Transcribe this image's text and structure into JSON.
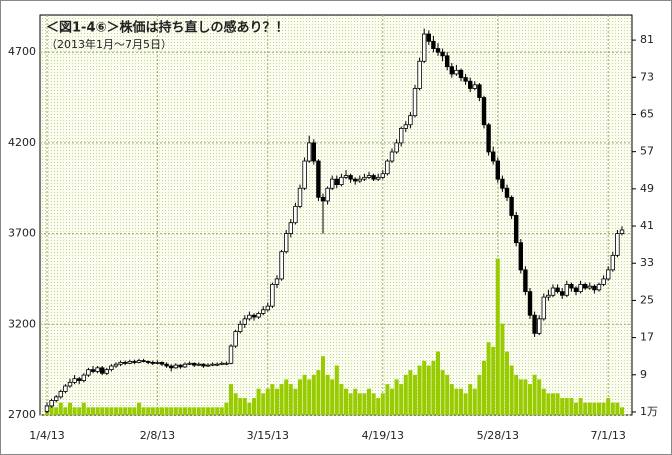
{
  "chart_data": {
    "type": "candlestick",
    "title": "＜図1-4⑥＞株価は持ち直しの感あり？！",
    "subtitle": "（2013年1月～7月5日）",
    "categories": [
      "1/4/13",
      null,
      null,
      null,
      null,
      null,
      null,
      null,
      null,
      null,
      null,
      null,
      null,
      null,
      null,
      null,
      null,
      null,
      null,
      null,
      null,
      null,
      null,
      null,
      "2/8/13",
      null,
      null,
      null,
      null,
      null,
      null,
      null,
      null,
      null,
      null,
      null,
      null,
      null,
      null,
      null,
      null,
      null,
      null,
      null,
      null,
      null,
      null,
      null,
      "3/15/13",
      null,
      null,
      null,
      null,
      null,
      null,
      null,
      null,
      null,
      null,
      null,
      null,
      null,
      null,
      null,
      null,
      null,
      null,
      null,
      null,
      null,
      null,
      null,
      null,
      "4/19/13",
      null,
      null,
      null,
      null,
      null,
      null,
      null,
      null,
      null,
      null,
      null,
      null,
      null,
      null,
      null,
      null,
      null,
      null,
      null,
      null,
      null,
      null,
      null,
      null,
      "5/28/13",
      null,
      null,
      null,
      null,
      null,
      null,
      null,
      null,
      null,
      null,
      null,
      null,
      null,
      null,
      null,
      null,
      null,
      null,
      null,
      null,
      null,
      null,
      null,
      "7/1/13",
      null,
      null,
      null
    ],
    "ohlc": [
      [
        2720,
        2770,
        2710,
        2750
      ],
      [
        2750,
        2790,
        2740,
        2780
      ],
      [
        2780,
        2810,
        2770,
        2800
      ],
      [
        2800,
        2840,
        2790,
        2830
      ],
      [
        2830,
        2870,
        2820,
        2860
      ],
      [
        2860,
        2900,
        2850,
        2880
      ],
      [
        2880,
        2920,
        2870,
        2900
      ],
      [
        2900,
        2910,
        2870,
        2890
      ],
      [
        2890,
        2930,
        2880,
        2920
      ],
      [
        2920,
        2960,
        2910,
        2950
      ],
      [
        2950,
        2970,
        2930,
        2940
      ],
      [
        2940,
        2970,
        2930,
        2960
      ],
      [
        2960,
        2970,
        2920,
        2930
      ],
      [
        2930,
        2960,
        2920,
        2950
      ],
      [
        2950,
        2980,
        2940,
        2970
      ],
      [
        2970,
        2990,
        2960,
        2980
      ],
      [
        2980,
        3000,
        2970,
        2990
      ],
      [
        2990,
        3000,
        2975,
        2985
      ],
      [
        2985,
        3005,
        2980,
        2995
      ],
      [
        2995,
        3005,
        2980,
        2990
      ],
      [
        2990,
        3010,
        2985,
        3000
      ],
      [
        3000,
        3010,
        2990,
        2995
      ],
      [
        2995,
        3000,
        2980,
        2990
      ],
      [
        2990,
        3000,
        2975,
        2985
      ],
      [
        2985,
        3000,
        2980,
        2990
      ],
      [
        2990,
        2995,
        2970,
        2980
      ],
      [
        2980,
        2990,
        2960,
        2970
      ],
      [
        2970,
        2980,
        2940,
        2960
      ],
      [
        2960,
        2985,
        2955,
        2975
      ],
      [
        2975,
        2980,
        2955,
        2965
      ],
      [
        2965,
        2990,
        2960,
        2980
      ],
      [
        2980,
        2995,
        2975,
        2985
      ],
      [
        2985,
        2990,
        2965,
        2975
      ],
      [
        2975,
        2990,
        2970,
        2980
      ],
      [
        2980,
        2985,
        2960,
        2970
      ],
      [
        2970,
        2985,
        2965,
        2975
      ],
      [
        2975,
        2990,
        2970,
        2980
      ],
      [
        2980,
        2990,
        2970,
        2980
      ],
      [
        2980,
        2995,
        2975,
        2985
      ],
      [
        2985,
        2995,
        2975,
        2985
      ],
      [
        2985,
        3090,
        2980,
        3080
      ],
      [
        3080,
        3170,
        3070,
        3160
      ],
      [
        3160,
        3220,
        3150,
        3200
      ],
      [
        3200,
        3250,
        3180,
        3230
      ],
      [
        3230,
        3270,
        3220,
        3250
      ],
      [
        3250,
        3260,
        3220,
        3240
      ],
      [
        3240,
        3270,
        3230,
        3260
      ],
      [
        3260,
        3300,
        3250,
        3280
      ],
      [
        3280,
        3320,
        3270,
        3300
      ],
      [
        3300,
        3430,
        3290,
        3420
      ],
      [
        3420,
        3470,
        3400,
        3450
      ],
      [
        3450,
        3610,
        3440,
        3600
      ],
      [
        3600,
        3720,
        3590,
        3700
      ],
      [
        3700,
        3780,
        3680,
        3760
      ],
      [
        3760,
        3870,
        3750,
        3850
      ],
      [
        3850,
        3970,
        3840,
        3950
      ],
      [
        3950,
        4120,
        3940,
        4100
      ],
      [
        4100,
        4240,
        4090,
        4200
      ],
      [
        4200,
        4220,
        4080,
        4100
      ],
      [
        4100,
        4110,
        3880,
        3900
      ],
      [
        3900,
        3920,
        3700,
        3880
      ],
      [
        3880,
        3960,
        3860,
        3950
      ],
      [
        3950,
        4020,
        3940,
        4000
      ],
      [
        4000,
        4020,
        3950,
        3970
      ],
      [
        3970,
        4030,
        3960,
        4010
      ],
      [
        4010,
        4050,
        4000,
        4020
      ],
      [
        4020,
        4030,
        3980,
        4000
      ],
      [
        4000,
        4010,
        3970,
        3990
      ],
      [
        3990,
        4020,
        3980,
        4000
      ],
      [
        4000,
        4030,
        3990,
        4010
      ],
      [
        4010,
        4040,
        4000,
        4020
      ],
      [
        4020,
        4030,
        3990,
        4000
      ],
      [
        4000,
        4030,
        3990,
        4010
      ],
      [
        4010,
        4050,
        4000,
        4030
      ],
      [
        4030,
        4110,
        4020,
        4100
      ],
      [
        4100,
        4170,
        4090,
        4150
      ],
      [
        4150,
        4220,
        4140,
        4200
      ],
      [
        4200,
        4290,
        4180,
        4280
      ],
      [
        4280,
        4320,
        4260,
        4300
      ],
      [
        4300,
        4370,
        4280,
        4350
      ],
      [
        4350,
        4520,
        4340,
        4500
      ],
      [
        4500,
        4670,
        4490,
        4650
      ],
      [
        4650,
        4830,
        4640,
        4800
      ],
      [
        4800,
        4820,
        4740,
        4760
      ],
      [
        4760,
        4790,
        4700,
        4720
      ],
      [
        4720,
        4750,
        4680,
        4700
      ],
      [
        4700,
        4720,
        4650,
        4680
      ],
      [
        4680,
        4700,
        4600,
        4620
      ],
      [
        4620,
        4640,
        4560,
        4580
      ],
      [
        4580,
        4630,
        4570,
        4600
      ],
      [
        4600,
        4610,
        4540,
        4560
      ],
      [
        4560,
        4580,
        4520,
        4540
      ],
      [
        4540,
        4560,
        4480,
        4500
      ],
      [
        4500,
        4540,
        4490,
        4520
      ],
      [
        4520,
        4530,
        4430,
        4450
      ],
      [
        4450,
        4460,
        4280,
        4300
      ],
      [
        4300,
        4310,
        4130,
        4150
      ],
      [
        4150,
        4180,
        4080,
        4100
      ],
      [
        4100,
        4120,
        3980,
        4000
      ],
      [
        4000,
        4020,
        3930,
        3950
      ],
      [
        3950,
        3970,
        3880,
        3900
      ],
      [
        3900,
        3910,
        3780,
        3800
      ],
      [
        3800,
        3820,
        3630,
        3650
      ],
      [
        3650,
        3670,
        3480,
        3500
      ],
      [
        3500,
        3520,
        3360,
        3380
      ],
      [
        3380,
        3400,
        3230,
        3250
      ],
      [
        3250,
        3270,
        3130,
        3150
      ],
      [
        3150,
        3250,
        3140,
        3230
      ],
      [
        3230,
        3370,
        3220,
        3350
      ],
      [
        3350,
        3390,
        3330,
        3360
      ],
      [
        3360,
        3420,
        3350,
        3400
      ],
      [
        3400,
        3420,
        3370,
        3380
      ],
      [
        3380,
        3400,
        3340,
        3360
      ],
      [
        3360,
        3440,
        3350,
        3420
      ],
      [
        3420,
        3430,
        3380,
        3400
      ],
      [
        3400,
        3410,
        3360,
        3380
      ],
      [
        3380,
        3440,
        3370,
        3420
      ],
      [
        3420,
        3430,
        3390,
        3400
      ],
      [
        3400,
        3430,
        3390,
        3410
      ],
      [
        3410,
        3420,
        3370,
        3390
      ],
      [
        3390,
        3430,
        3380,
        3420
      ],
      [
        3420,
        3470,
        3410,
        3450
      ],
      [
        3450,
        3520,
        3440,
        3500
      ],
      [
        3500,
        3600,
        3490,
        3580
      ],
      [
        3580,
        3720,
        3570,
        3700
      ],
      [
        3700,
        3740,
        3690,
        3720
      ]
    ],
    "up_color": "#ffffff",
    "down_color": "#000000",
    "ylim": [
      2700,
      4905
    ],
    "yticks": [
      2700,
      3200,
      3700,
      4200,
      4700
    ],
    "volume": {
      "axis": "y2",
      "color": "#99cc00",
      "values": [
        2,
        3,
        2,
        3,
        2,
        3,
        2,
        2,
        3,
        2,
        2,
        2,
        2,
        2,
        2,
        2,
        2,
        2,
        2,
        2,
        3,
        2,
        2,
        2,
        2,
        2,
        2,
        2,
        2,
        2,
        2,
        2,
        2,
        2,
        2,
        2,
        2,
        2,
        2,
        3,
        7,
        5,
        4,
        4,
        3,
        4,
        6,
        5,
        6,
        7,
        6,
        7,
        8,
        7,
        6,
        8,
        9,
        8,
        9,
        10,
        13,
        9,
        8,
        11,
        7,
        6,
        5,
        6,
        5,
        5,
        6,
        5,
        4,
        5,
        7,
        6,
        8,
        7,
        9,
        10,
        9,
        11,
        12,
        11,
        12,
        14,
        10,
        9,
        7,
        6,
        6,
        5,
        7,
        6,
        9,
        12,
        16,
        15,
        34,
        20,
        14,
        11,
        9,
        8,
        8,
        7,
        9,
        8,
        6,
        5,
        5,
        5,
        4,
        4,
        4,
        3,
        4,
        3,
        3,
        3,
        3,
        3,
        4,
        3,
        3,
        2
      ]
    },
    "y2lim": [
      0.35,
      86.4
    ],
    "y2ticks": [
      {
        "value": 1,
        "label": "1万"
      },
      9,
      17,
      25,
      33,
      41,
      49,
      57,
      65,
      73,
      81
    ],
    "grid": true
  }
}
